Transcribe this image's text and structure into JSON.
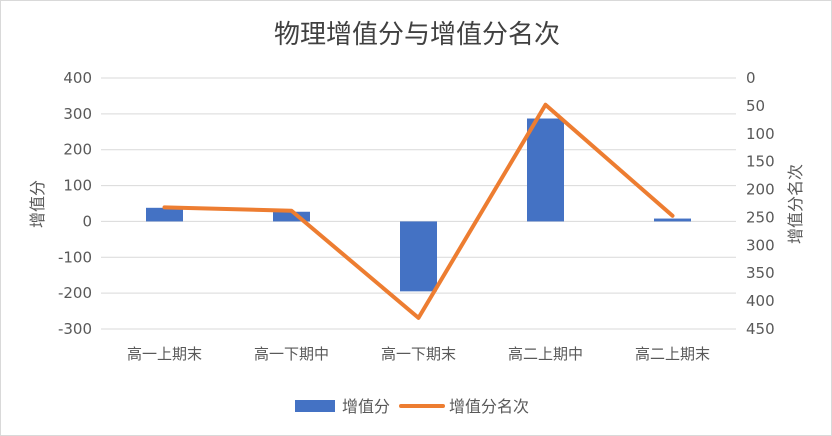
{
  "chart_data": {
    "type": "bar",
    "title": "物理增值分与增值分名次",
    "categories": [
      "高一上期末",
      "高一下期中",
      "高一下期末",
      "高二上期中",
      "高二上期末"
    ],
    "series": [
      {
        "name": "增值分",
        "type": "bar",
        "axis": "left",
        "color": "#4472C4",
        "values": [
          38,
          27,
          -195,
          287,
          8
        ]
      },
      {
        "name": "增值分名次",
        "type": "line",
        "axis": "right",
        "color": "#ED7D31",
        "values": [
          232,
          238,
          430,
          48,
          247
        ]
      }
    ],
    "ylabel": "增值分",
    "ylabel_right": "增值分名次",
    "ylim": [
      -300,
      400
    ],
    "ylim_right": [
      0,
      450
    ],
    "yticks": [
      "400",
      "300",
      "200",
      "100",
      "0",
      "-100",
      "-200",
      "-300"
    ],
    "yticks_right": [
      "0",
      "50",
      "100",
      "150",
      "200",
      "250",
      "300",
      "350",
      "400",
      "450"
    ],
    "right_axis_reversed": true,
    "grid": true,
    "legend": "bottom"
  }
}
